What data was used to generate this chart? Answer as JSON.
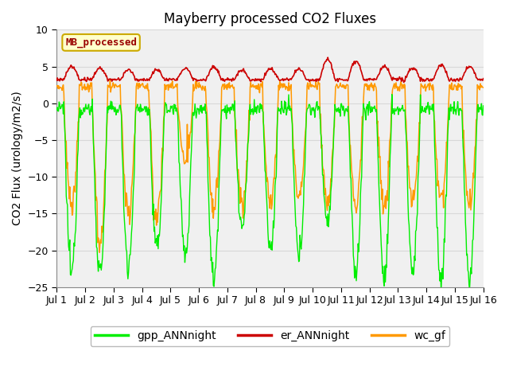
{
  "title": "Mayberry processed CO2 Fluxes",
  "ylabel": "CO2 Flux (urology/m2/s)",
  "xlim_days": 15,
  "ylim": [
    -25,
    10
  ],
  "yticks": [
    -25,
    -20,
    -15,
    -10,
    -5,
    0,
    5,
    10
  ],
  "xtick_labels": [
    "Jul 1",
    "Jul 2",
    "Jul 3",
    "Jul 4",
    "Jul 5",
    "Jul 6",
    "Jul 7",
    "Jul 8",
    "Jul 9",
    "Jul 10",
    "Jul 11",
    "Jul 12",
    "Jul 13",
    "Jul 14",
    "Jul 15",
    "Jul 16"
  ],
  "color_gpp": "#00ee00",
  "color_er": "#cc0000",
  "color_wc": "#ff9900",
  "watermark_text": "MB_processed",
  "watermark_color": "#990000",
  "watermark_bg": "#ffffcc",
  "watermark_border": "#ccaa00",
  "legend_labels": [
    "gpp_ANNnight",
    "er_ANNnight",
    "wc_gf"
  ],
  "n_days": 15,
  "points_per_day": 48,
  "title_fontsize": 12,
  "axis_label_fontsize": 10,
  "tick_fontsize": 9,
  "legend_fontsize": 10,
  "background_color": "#ffffff",
  "plot_bg_color": "#f0f0f0",
  "grid_color": "#d8d8d8",
  "linewidth_gpp": 1.0,
  "linewidth_er": 1.2,
  "linewidth_wc": 1.1,
  "gpp_day_depths": [
    -23,
    -23,
    -22,
    -20,
    -21,
    -24,
    -17,
    -20,
    -21,
    -16,
    -23,
    -24,
    -23,
    -24,
    -24
  ],
  "wc_day_depths": [
    -14,
    -19,
    -15,
    -16,
    -8,
    -14,
    -14,
    -14,
    -13,
    -14,
    -14,
    -14,
    -13,
    -13,
    -14
  ],
  "er_day_peaks": [
    5.0,
    4.8,
    4.5,
    4.5,
    4.8,
    4.9,
    4.5,
    4.7,
    4.6,
    6.0,
    5.8,
    5.0,
    4.8,
    5.2,
    5.0
  ]
}
